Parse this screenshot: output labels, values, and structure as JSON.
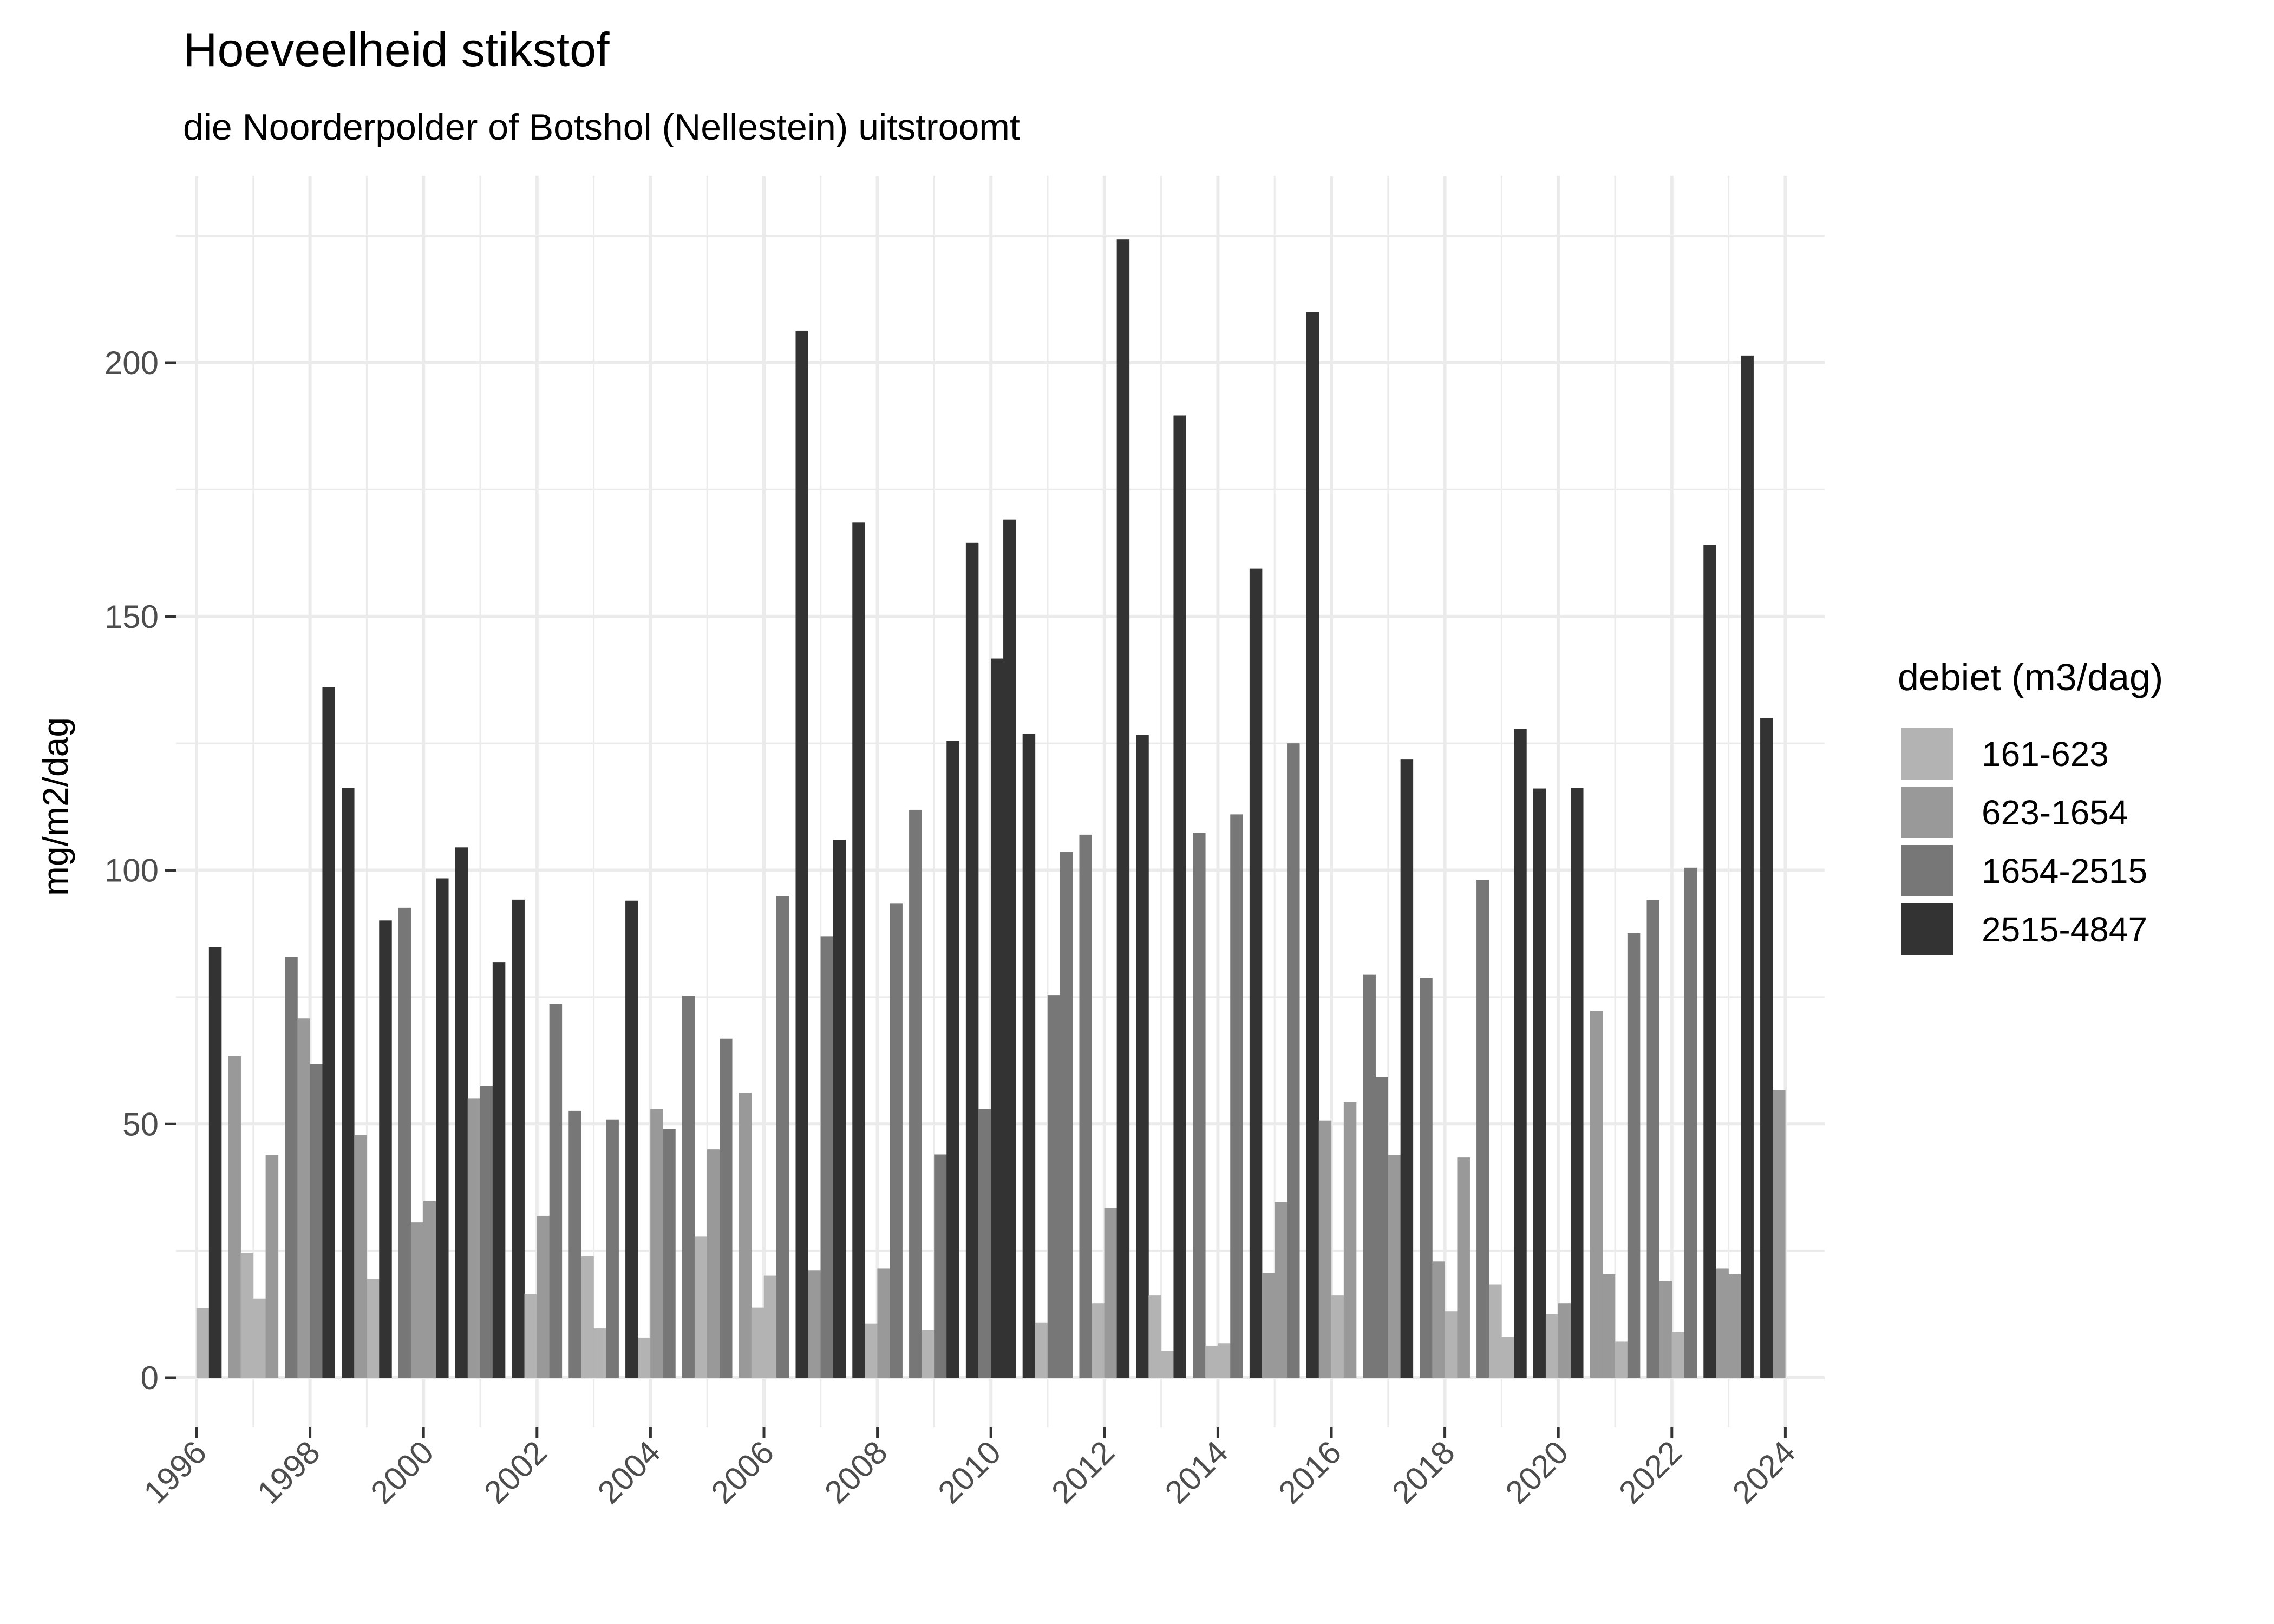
{
  "chart_data": {
    "type": "bar",
    "title": "Hoeveelheid stikstof",
    "subtitle": "die Noorderpolder of Botshol (Nellestein) uitstroomt",
    "xlabel": "",
    "ylabel": "mg/m2/dag",
    "xlim": [
      1996,
      2024
    ],
    "ylim": [
      0,
      230
    ],
    "x_ticks": [
      "1996",
      "1998",
      "2000",
      "2002",
      "2004",
      "2006",
      "2008",
      "2010",
      "2012",
      "2014",
      "2016",
      "2018",
      "2020",
      "2022",
      "2024"
    ],
    "y_ticks": [
      "0",
      "50",
      "100",
      "150",
      "200"
    ],
    "grid": true,
    "legend": {
      "title": "debiet (m3/dag)",
      "placement": "right",
      "entries": [
        {
          "label": "161-623",
          "color": "#b3b3b3"
        },
        {
          "label": "623-1654",
          "color": "#999999"
        },
        {
          "label": "1654-2515",
          "color": "#777777"
        },
        {
          "label": "2515-4847",
          "color": "#333333"
        }
      ]
    },
    "bars": [
      {
        "x": 1996.11,
        "value": 13.7,
        "cat": 0
      },
      {
        "x": 1996.33,
        "value": 84.8,
        "cat": 3
      },
      {
        "x": 1996.67,
        "value": 63.4,
        "cat": 1
      },
      {
        "x": 1996.89,
        "value": 24.6,
        "cat": 0
      },
      {
        "x": 1997.11,
        "value": 15.6,
        "cat": 0
      },
      {
        "x": 1997.33,
        "value": 43.9,
        "cat": 1
      },
      {
        "x": 1997.67,
        "value": 82.9,
        "cat": 2
      },
      {
        "x": 1997.89,
        "value": 70.8,
        "cat": 1
      },
      {
        "x": 1998.11,
        "value": 61.8,
        "cat": 2
      },
      {
        "x": 1998.33,
        "value": 136.0,
        "cat": 3
      },
      {
        "x": 1998.67,
        "value": 116.2,
        "cat": 3
      },
      {
        "x": 1998.89,
        "value": 47.8,
        "cat": 1
      },
      {
        "x": 1999.11,
        "value": 19.5,
        "cat": 0
      },
      {
        "x": 1999.33,
        "value": 90.1,
        "cat": 3
      },
      {
        "x": 1999.67,
        "value": 92.6,
        "cat": 2
      },
      {
        "x": 1999.89,
        "value": 30.6,
        "cat": 1
      },
      {
        "x": 2000.11,
        "value": 34.8,
        "cat": 1
      },
      {
        "x": 2000.33,
        "value": 98.4,
        "cat": 3
      },
      {
        "x": 2000.67,
        "value": 104.5,
        "cat": 3
      },
      {
        "x": 2000.89,
        "value": 55.0,
        "cat": 1
      },
      {
        "x": 2001.11,
        "value": 57.4,
        "cat": 2
      },
      {
        "x": 2001.33,
        "value": 81.8,
        "cat": 3
      },
      {
        "x": 2001.67,
        "value": 94.2,
        "cat": 3
      },
      {
        "x": 2001.89,
        "value": 16.5,
        "cat": 0
      },
      {
        "x": 2002.11,
        "value": 31.9,
        "cat": 1
      },
      {
        "x": 2002.33,
        "value": 73.6,
        "cat": 2
      },
      {
        "x": 2002.67,
        "value": 52.6,
        "cat": 2
      },
      {
        "x": 2002.89,
        "value": 23.9,
        "cat": 0
      },
      {
        "x": 2003.11,
        "value": 9.7,
        "cat": 0
      },
      {
        "x": 2003.33,
        "value": 50.8,
        "cat": 2
      },
      {
        "x": 2003.67,
        "value": 94.0,
        "cat": 3
      },
      {
        "x": 2003.89,
        "value": 7.9,
        "cat": 0
      },
      {
        "x": 2004.11,
        "value": 53.0,
        "cat": 1
      },
      {
        "x": 2004.33,
        "value": 49.0,
        "cat": 2
      },
      {
        "x": 2004.67,
        "value": 75.3,
        "cat": 2
      },
      {
        "x": 2004.89,
        "value": 27.8,
        "cat": 0
      },
      {
        "x": 2005.11,
        "value": 45.0,
        "cat": 1
      },
      {
        "x": 2005.33,
        "value": 66.8,
        "cat": 2
      },
      {
        "x": 2005.67,
        "value": 56.1,
        "cat": 1
      },
      {
        "x": 2005.89,
        "value": 13.8,
        "cat": 0
      },
      {
        "x": 2006.11,
        "value": 20.1,
        "cat": 0
      },
      {
        "x": 2006.33,
        "value": 94.9,
        "cat": 2
      },
      {
        "x": 2006.67,
        "value": 206.3,
        "cat": 3
      },
      {
        "x": 2006.89,
        "value": 21.2,
        "cat": 1
      },
      {
        "x": 2007.11,
        "value": 87.0,
        "cat": 2
      },
      {
        "x": 2007.33,
        "value": 106.0,
        "cat": 3
      },
      {
        "x": 2007.67,
        "value": 168.5,
        "cat": 3
      },
      {
        "x": 2007.89,
        "value": 10.7,
        "cat": 0
      },
      {
        "x": 2008.11,
        "value": 21.5,
        "cat": 1
      },
      {
        "x": 2008.33,
        "value": 93.4,
        "cat": 2
      },
      {
        "x": 2008.67,
        "value": 111.9,
        "cat": 2
      },
      {
        "x": 2008.89,
        "value": 9.4,
        "cat": 0
      },
      {
        "x": 2009.11,
        "value": 44.0,
        "cat": 2
      },
      {
        "x": 2009.33,
        "value": 125.5,
        "cat": 3
      },
      {
        "x": 2009.67,
        "value": 164.5,
        "cat": 3
      },
      {
        "x": 2009.89,
        "value": 53.0,
        "cat": 2
      },
      {
        "x": 2010.11,
        "value": 141.7,
        "cat": 3
      },
      {
        "x": 2010.33,
        "value": 169.1,
        "cat": 3
      },
      {
        "x": 2010.67,
        "value": 126.9,
        "cat": 3
      },
      {
        "x": 2010.89,
        "value": 10.8,
        "cat": 0
      },
      {
        "x": 2011.11,
        "value": 75.4,
        "cat": 2
      },
      {
        "x": 2011.33,
        "value": 103.6,
        "cat": 2
      },
      {
        "x": 2011.67,
        "value": 107.0,
        "cat": 2
      },
      {
        "x": 2011.89,
        "value": 14.7,
        "cat": 0
      },
      {
        "x": 2012.11,
        "value": 33.4,
        "cat": 1
      },
      {
        "x": 2012.33,
        "value": 224.3,
        "cat": 3
      },
      {
        "x": 2012.67,
        "value": 126.7,
        "cat": 3
      },
      {
        "x": 2012.89,
        "value": 16.2,
        "cat": 0
      },
      {
        "x": 2013.11,
        "value": 5.3,
        "cat": 0
      },
      {
        "x": 2013.33,
        "value": 189.6,
        "cat": 3
      },
      {
        "x": 2013.67,
        "value": 107.4,
        "cat": 2
      },
      {
        "x": 2013.89,
        "value": 6.3,
        "cat": 0
      },
      {
        "x": 2014.11,
        "value": 6.8,
        "cat": 0
      },
      {
        "x": 2014.33,
        "value": 111.0,
        "cat": 2
      },
      {
        "x": 2014.67,
        "value": 159.4,
        "cat": 3
      },
      {
        "x": 2014.89,
        "value": 20.6,
        "cat": 1
      },
      {
        "x": 2015.11,
        "value": 34.6,
        "cat": 1
      },
      {
        "x": 2015.33,
        "value": 125.0,
        "cat": 2
      },
      {
        "x": 2015.67,
        "value": 210.0,
        "cat": 3
      },
      {
        "x": 2015.89,
        "value": 50.7,
        "cat": 1
      },
      {
        "x": 2016.11,
        "value": 16.2,
        "cat": 0
      },
      {
        "x": 2016.33,
        "value": 54.3,
        "cat": 1
      },
      {
        "x": 2016.67,
        "value": 79.4,
        "cat": 2
      },
      {
        "x": 2016.89,
        "value": 59.2,
        "cat": 2
      },
      {
        "x": 2017.11,
        "value": 43.9,
        "cat": 1
      },
      {
        "x": 2017.33,
        "value": 121.8,
        "cat": 3
      },
      {
        "x": 2017.67,
        "value": 78.8,
        "cat": 2
      },
      {
        "x": 2017.89,
        "value": 22.9,
        "cat": 1
      },
      {
        "x": 2018.11,
        "value": 13.1,
        "cat": 0
      },
      {
        "x": 2018.33,
        "value": 43.4,
        "cat": 1
      },
      {
        "x": 2018.67,
        "value": 98.1,
        "cat": 2
      },
      {
        "x": 2018.89,
        "value": 18.4,
        "cat": 0
      },
      {
        "x": 2019.11,
        "value": 8.0,
        "cat": 0
      },
      {
        "x": 2019.33,
        "value": 127.8,
        "cat": 3
      },
      {
        "x": 2019.67,
        "value": 116.1,
        "cat": 3
      },
      {
        "x": 2019.89,
        "value": 12.5,
        "cat": 0
      },
      {
        "x": 2020.11,
        "value": 14.7,
        "cat": 1
      },
      {
        "x": 2020.33,
        "value": 116.2,
        "cat": 3
      },
      {
        "x": 2020.67,
        "value": 72.3,
        "cat": 1
      },
      {
        "x": 2020.89,
        "value": 20.4,
        "cat": 1
      },
      {
        "x": 2021.11,
        "value": 7.1,
        "cat": 0
      },
      {
        "x": 2021.33,
        "value": 87.6,
        "cat": 2
      },
      {
        "x": 2021.67,
        "value": 94.1,
        "cat": 2
      },
      {
        "x": 2021.89,
        "value": 19.0,
        "cat": 1
      },
      {
        "x": 2022.11,
        "value": 9.0,
        "cat": 0
      },
      {
        "x": 2022.33,
        "value": 100.5,
        "cat": 2
      },
      {
        "x": 2022.67,
        "value": 164.1,
        "cat": 3
      },
      {
        "x": 2022.89,
        "value": 21.5,
        "cat": 1
      },
      {
        "x": 2023.11,
        "value": 20.4,
        "cat": 1
      },
      {
        "x": 2023.33,
        "value": 201.4,
        "cat": 3
      },
      {
        "x": 2023.67,
        "value": 130.0,
        "cat": 3
      },
      {
        "x": 2023.89,
        "value": 56.7,
        "cat": 1
      }
    ]
  }
}
